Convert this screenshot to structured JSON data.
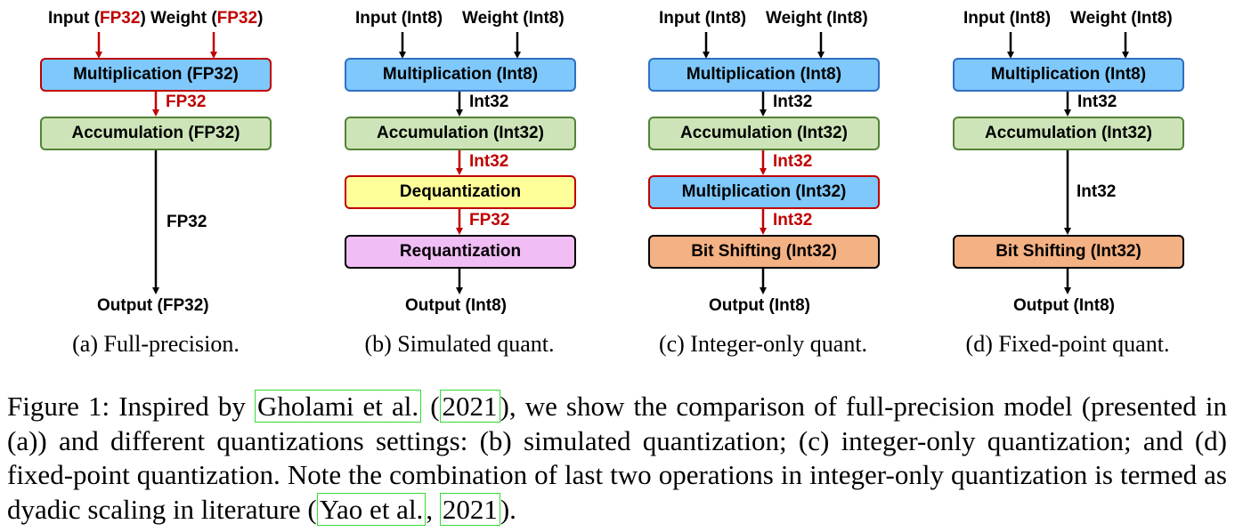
{
  "colors": {
    "blue_fill": "#7ec8fb",
    "blue_border": "#2f6fc1",
    "green_fill": "#cde4b8",
    "green_border": "#548235",
    "yellow_fill": "#ffff99",
    "pink_fill": "#f0bdf5",
    "pink_border": "#000000",
    "orange_fill": "#f4b183",
    "orange_border": "#000000",
    "red": "#c00000",
    "cite_border": "#33dd33"
  },
  "panels": {
    "a": {
      "input": "Input (",
      "input_type": "FP32",
      "input_close": ")",
      "weight": " Weight (",
      "weight_type": "FP32",
      "weight_close": ")",
      "box1": "Multiplication (FP32)",
      "arrow1": "FP32",
      "box2": "Accumulation (FP32)",
      "arrow2": "FP32",
      "output": "Output (FP32)",
      "caption": "(a) Full-precision."
    },
    "b": {
      "input": "Input (Int8)",
      "weight": "Weight (Int8)",
      "box1": "Multiplication (Int8)",
      "arrow1": "Int32",
      "box2": "Accumulation (Int32)",
      "arrow2": "Int32",
      "box3": "Dequantization",
      "arrow3": "FP32",
      "box4": "Requantization",
      "output": "Output (Int8)",
      "caption": "(b) Simulated quant."
    },
    "c": {
      "input": "Input (Int8)",
      "weight": "Weight (Int8)",
      "box1": "Multiplication (Int8)",
      "arrow1": "Int32",
      "box2": "Accumulation (Int32)",
      "arrow2": "Int32",
      "box3": "Multiplication (Int32)",
      "arrow3": "Int32",
      "box4": "Bit Shifting (Int32)",
      "output": "Output (Int8)",
      "caption": "(c) Integer-only quant."
    },
    "d": {
      "input": "Input (Int8)",
      "weight": "Weight (Int8)",
      "box1": "Multiplication (Int8)",
      "arrow1": "Int32",
      "box2": "Accumulation (Int32)",
      "arrow2": "Int32",
      "box3": "Bit Shifting (Int32)",
      "output": "Output (Int8)",
      "caption": "(d) Fixed-point quant."
    }
  },
  "figure_caption": {
    "p1": "Figure 1: Inspired by ",
    "cite1_author": "Gholami et al.",
    "p2": " (",
    "cite1_year": "2021",
    "p3": "), we show the comparison of full-precision model (presented in (a)) and different quantizations settings: (b) simulated quantization; (c) integer-only quantization; and (d) fixed-point quantization. Note the combination of last two operations in integer-only quantization is termed as dyadic scaling in literature (",
    "cite2_author": "Yao et al.",
    "p4": ", ",
    "cite2_year": "2021",
    "p5": ")."
  }
}
